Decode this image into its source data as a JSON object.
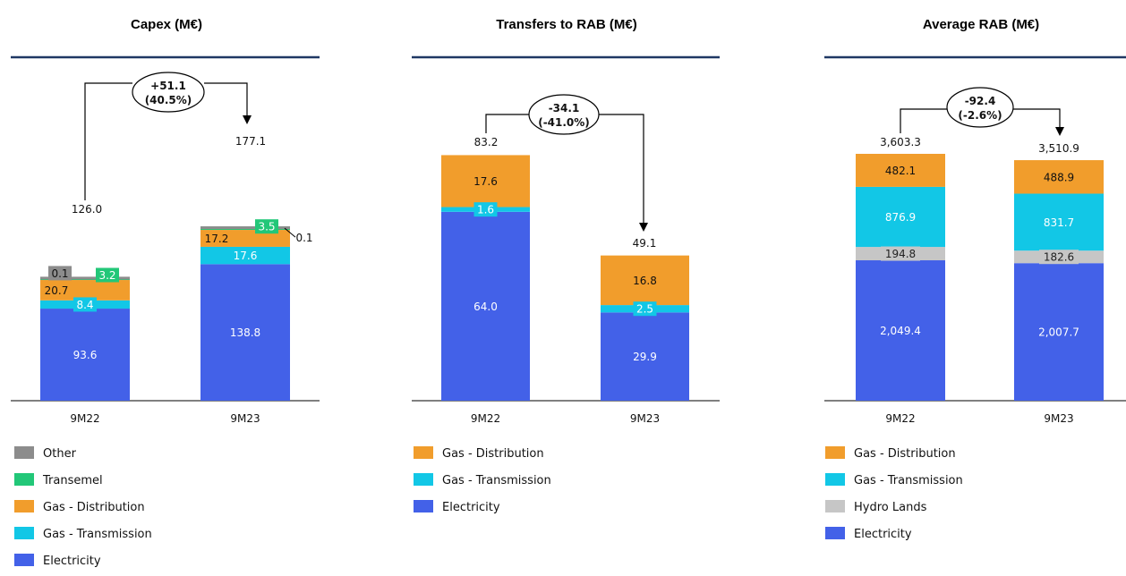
{
  "colors": {
    "electricity": "#4361E8",
    "gas_transmission": "#12C7E6",
    "gas_distribution": "#F19D2C",
    "transemel": "#22C778",
    "other": "#8C8C8C",
    "hydro_lands": "#C6C6C6",
    "title_rule": "#1F3864"
  },
  "chart_data": [
    {
      "type": "bar",
      "stacked": true,
      "title": "Capex (M€)",
      "categories": [
        "9M22",
        "9M23"
      ],
      "ylim": [
        0,
        200
      ],
      "totals": [
        "126.0",
        "177.1"
      ],
      "series": [
        {
          "name": "Electricity",
          "key": "electricity",
          "values": [
            93.6,
            138.8
          ],
          "labels": [
            "93.6",
            "138.8"
          ]
        },
        {
          "name": "Gas - Transmission",
          "key": "gas_transmission",
          "values": [
            8.4,
            17.6
          ],
          "labels": [
            "8.4",
            "17.6"
          ]
        },
        {
          "name": "Gas - Distribution",
          "key": "gas_distribution",
          "values": [
            20.7,
            17.2
          ],
          "labels": [
            "20.7",
            "17.2"
          ]
        },
        {
          "name": "Transemel",
          "key": "transemel",
          "values": [
            3.2,
            3.5
          ],
          "labels": [
            "3.2",
            "3.5"
          ]
        },
        {
          "name": "Other",
          "key": "other",
          "values": [
            0.1,
            0.1
          ],
          "labels": [
            "0.1",
            "0.1"
          ]
        }
      ],
      "change": {
        "line1": "+51.1",
        "line2": "(40.5%)"
      },
      "legend": [
        "Other",
        "Transemel",
        "Gas - Distribution",
        "Gas - Transmission",
        "Electricity"
      ],
      "legend_keys": [
        "other",
        "transemel",
        "gas_distribution",
        "gas_transmission",
        "electricity"
      ]
    },
    {
      "type": "bar",
      "stacked": true,
      "title": "Transfers to RAB (M€)",
      "categories": [
        "9M22",
        "9M23"
      ],
      "ylim": [
        0,
        100
      ],
      "totals": [
        "83.2",
        "49.1"
      ],
      "series": [
        {
          "name": "Electricity",
          "key": "electricity",
          "values": [
            64.0,
            29.9
          ],
          "labels": [
            "64.0",
            "29.9"
          ]
        },
        {
          "name": "Gas - Transmission",
          "key": "gas_transmission",
          "values": [
            1.6,
            2.5
          ],
          "labels": [
            "1.6",
            "2.5"
          ]
        },
        {
          "name": "Gas - Distribution",
          "key": "gas_distribution",
          "values": [
            17.6,
            16.8
          ],
          "labels": [
            "17.6",
            "16.8"
          ]
        }
      ],
      "change": {
        "line1": "-34.1",
        "line2": "(-41.0%)"
      },
      "legend": [
        "Gas - Distribution",
        "Gas - Transmission",
        "Electricity"
      ],
      "legend_keys": [
        "gas_distribution",
        "gas_transmission",
        "electricity"
      ]
    },
    {
      "type": "bar",
      "stacked": true,
      "title": "Average RAB (M€)",
      "categories": [
        "9M22",
        "9M23"
      ],
      "ylim": [
        0,
        4000
      ],
      "totals": [
        "3,603.3",
        "3,510.9"
      ],
      "series": [
        {
          "name": "Electricity",
          "key": "electricity",
          "values": [
            2049.4,
            2007.7
          ],
          "labels": [
            "2,049.4",
            "2,007.7"
          ]
        },
        {
          "name": "Hydro Lands",
          "key": "hydro_lands",
          "values": [
            194.8,
            182.6
          ],
          "labels": [
            "194.8",
            "182.6"
          ]
        },
        {
          "name": "Gas - Transmission",
          "key": "gas_transmission",
          "values": [
            876.9,
            831.7
          ],
          "labels": [
            "876.9",
            "831.7"
          ]
        },
        {
          "name": "Gas - Distribution",
          "key": "gas_distribution",
          "values": [
            482.1,
            488.9
          ],
          "labels": [
            "482.1",
            "488.9"
          ]
        }
      ],
      "change": {
        "line1": "-92.4",
        "line2": "(-2.6%)"
      },
      "legend": [
        "Gas - Distribution",
        "Gas - Transmission",
        "Hydro Lands",
        "Electricity"
      ],
      "legend_keys": [
        "gas_distribution",
        "gas_transmission",
        "hydro_lands",
        "electricity"
      ]
    }
  ]
}
